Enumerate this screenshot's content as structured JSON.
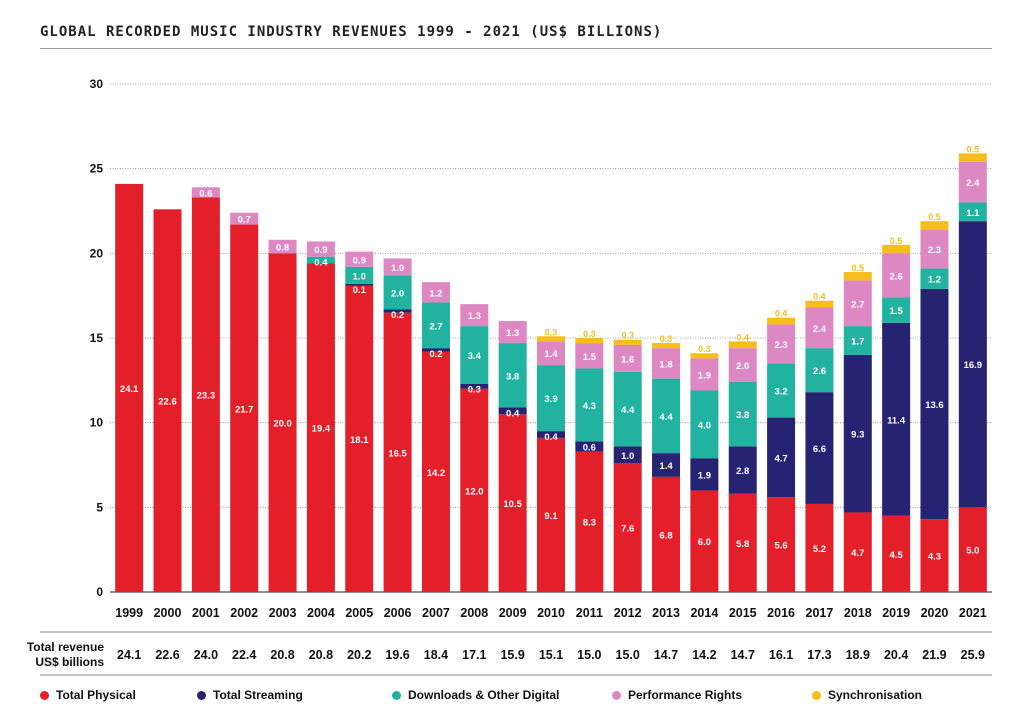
{
  "chart_data": {
    "type": "bar",
    "stacked": true,
    "title": "GLOBAL RECORDED MUSIC INDUSTRY REVENUES 1999 - 2021 (US$ BILLIONS)",
    "categories": [
      "1999",
      "2000",
      "2001",
      "2002",
      "2003",
      "2004",
      "2005",
      "2006",
      "2007",
      "2008",
      "2009",
      "2010",
      "2011",
      "2012",
      "2013",
      "2014",
      "2015",
      "2016",
      "2017",
      "2018",
      "2019",
      "2020",
      "2021"
    ],
    "ylim": [
      0,
      30
    ],
    "yticks": [
      0,
      5,
      10,
      15,
      20,
      25,
      30
    ],
    "series": [
      {
        "name": "Total Physical",
        "color": "#e3202a",
        "values": [
          24.1,
          22.6,
          23.3,
          21.7,
          20.0,
          19.4,
          18.1,
          16.5,
          14.2,
          12.0,
          10.5,
          9.1,
          8.3,
          7.6,
          6.8,
          6.0,
          5.8,
          5.6,
          5.2,
          4.7,
          4.5,
          4.3,
          5.0
        ],
        "labels": [
          "24.1",
          "22.6",
          "23.3",
          "21.7",
          "20.0",
          "19.4",
          "18.1",
          "16.5",
          "14.2",
          "12.0",
          "10.5",
          "9.1",
          "8.3",
          "7.6",
          "6.8",
          "6.0",
          "5.8",
          "5.6",
          "5.2",
          "4.7",
          "4.5",
          "4.3",
          "5.0"
        ]
      },
      {
        "name": "Total Streaming",
        "color": "#252372",
        "values": [
          0,
          0,
          0,
          0,
          0,
          0,
          0.1,
          0.2,
          0.2,
          0.3,
          0.4,
          0.4,
          0.6,
          1.0,
          1.4,
          1.9,
          2.8,
          4.7,
          6.6,
          9.3,
          11.4,
          13.6,
          16.9
        ],
        "labels": [
          "",
          "",
          "",
          "",
          "",
          "",
          "0.1",
          "0.2",
          "0.2",
          "0.3",
          "0.4",
          "0.4",
          "0.6",
          "1.0",
          "1.4",
          "1.9",
          "2.8",
          "4.7",
          "6.6",
          "9.3",
          "11.4",
          "13.6",
          "16.9"
        ]
      },
      {
        "name": "Downloads & Other Digital",
        "color": "#21b3a0",
        "values": [
          0,
          0,
          0,
          0,
          0,
          0.4,
          1.0,
          2.0,
          2.7,
          3.4,
          3.8,
          3.9,
          4.3,
          4.4,
          4.4,
          4.0,
          3.8,
          3.2,
          2.6,
          1.7,
          1.5,
          1.2,
          1.1
        ],
        "labels": [
          "",
          "",
          "",
          "",
          "",
          "0.4",
          "1.0",
          "2.0",
          "2.7",
          "3.4",
          "3.8",
          "3.9",
          "4.3",
          "4.4",
          "4.4",
          "4.0",
          "3.8",
          "3.2",
          "2.6",
          "1.7",
          "1.5",
          "1.2",
          "1.1"
        ]
      },
      {
        "name": "Performance Rights",
        "color": "#dd88c3",
        "values": [
          0,
          0,
          0.6,
          0.7,
          0.8,
          0.9,
          0.9,
          1.0,
          1.2,
          1.3,
          1.3,
          1.4,
          1.5,
          1.6,
          1.8,
          1.9,
          2.0,
          2.3,
          2.4,
          2.7,
          2.6,
          2.3,
          2.4
        ],
        "labels": [
          "",
          "",
          "0.6",
          "0.7",
          "0.8",
          "0.9",
          "0.9",
          "1.0",
          "1.2",
          "1.3",
          "1.3",
          "1.4",
          "1.5",
          "1.6",
          "1.8",
          "1.9",
          "2.0",
          "2.3",
          "2.4",
          "2.7",
          "2.6",
          "2.3",
          "2.4"
        ]
      },
      {
        "name": "Synchronisation",
        "color": "#f7bd1c",
        "values": [
          0,
          0,
          0,
          0,
          0,
          0,
          0,
          0,
          0,
          0,
          0,
          0.3,
          0.3,
          0.3,
          0.3,
          0.3,
          0.4,
          0.4,
          0.4,
          0.5,
          0.5,
          0.5,
          0.5
        ],
        "labels": [
          "",
          "",
          "",
          "",
          "",
          "",
          "",
          "",
          "",
          "",
          "",
          "0.3",
          "0.3",
          "0.3",
          "0.3",
          "0.3",
          "0.4",
          "0.4",
          "0.4",
          "0.5",
          "0.5",
          "0.5",
          "0.5"
        ]
      }
    ],
    "totals_label": "Total revenue\nUS$ billions",
    "totals": [
      "24.1",
      "22.6",
      "24.0",
      "22.4",
      "20.8",
      "20.8",
      "20.2",
      "19.6",
      "18.4",
      "17.1",
      "15.9",
      "15.1",
      "15.0",
      "15.0",
      "14.7",
      "14.2",
      "14.7",
      "16.1",
      "17.3",
      "18.9",
      "20.4",
      "21.9",
      "25.9"
    ],
    "grid": true,
    "legend_position": "bottom"
  }
}
